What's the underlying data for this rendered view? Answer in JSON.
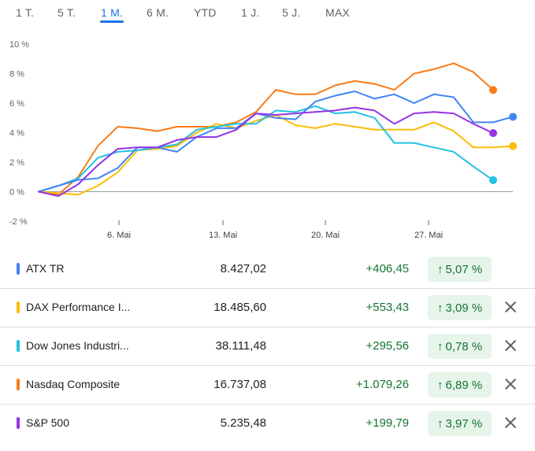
{
  "tabs": [
    "1 T.",
    "5 T.",
    "1 M.",
    "6 M.",
    "YTD",
    "1 J.",
    "5 J.",
    "MAX"
  ],
  "active_tab": "1 M.",
  "chart_data": {
    "type": "line",
    "y_unit": "%",
    "ylim": [
      -2,
      10
    ],
    "yticks": [
      "10 %",
      "8 %",
      "6 %",
      "4 %",
      "2 %",
      "0 %",
      "-2 %"
    ],
    "xticks": [
      "6. Mai",
      "13. Mai",
      "20. Mai",
      "27. Mai"
    ],
    "grid": false,
    "series": [
      {
        "name": "ATX TR",
        "color": "#4285f4",
        "values": [
          0,
          0.4,
          0.8,
          0.9,
          1.6,
          3.0,
          3.0,
          2.7,
          3.7,
          4.3,
          4.3,
          5.3,
          5.0,
          4.9,
          6.1,
          6.5,
          6.8,
          6.3,
          6.6,
          6.0,
          6.6,
          6.4,
          4.7,
          4.7,
          5.07
        ]
      },
      {
        "name": "DAX Performance I...",
        "color": "#fbbc04",
        "values": [
          0,
          -0.1,
          -0.2,
          0.4,
          1.3,
          2.8,
          2.9,
          3.1,
          4.0,
          4.6,
          4.3,
          4.8,
          5.2,
          4.5,
          4.3,
          4.6,
          4.4,
          4.2,
          4.2,
          4.2,
          4.7,
          4.1,
          3.0,
          3.0,
          3.09
        ]
      },
      {
        "name": "Dow Jones Industri...",
        "color": "#24c1e0",
        "values": [
          0,
          0.4,
          0.9,
          2.3,
          2.7,
          2.8,
          3.0,
          3.2,
          4.2,
          4.4,
          4.6,
          4.6,
          5.5,
          5.4,
          5.8,
          5.3,
          5.4,
          5.0,
          3.3,
          3.3,
          3.0,
          2.7,
          1.7,
          0.78
        ]
      },
      {
        "name": "Nasdaq Composite",
        "color": "#fa7b17",
        "values": [
          0,
          -0.2,
          1.0,
          3.1,
          4.4,
          4.3,
          4.1,
          4.4,
          4.4,
          4.4,
          4.7,
          5.4,
          6.9,
          6.6,
          6.6,
          7.2,
          7.5,
          7.3,
          6.9,
          8.0,
          8.3,
          8.7,
          8.1,
          6.89
        ]
      },
      {
        "name": "S&P 500",
        "color": "#9334e6",
        "values": [
          0,
          -0.3,
          0.5,
          1.8,
          2.9,
          3.0,
          3.0,
          3.5,
          3.7,
          3.7,
          4.2,
          5.3,
          5.2,
          5.3,
          5.4,
          5.5,
          5.7,
          5.5,
          4.6,
          5.3,
          5.4,
          5.3,
          4.6,
          3.97
        ]
      }
    ]
  },
  "rows": [
    {
      "name": "ATX TR",
      "price": "8.427,02",
      "change": "+406,45",
      "pct": "5,07 %",
      "color": "#4285f4",
      "removable": false
    },
    {
      "name": "DAX Performance I...",
      "price": "18.485,60",
      "change": "+553,43",
      "pct": "3,09 %",
      "color": "#fbbc04",
      "removable": true
    },
    {
      "name": "Dow Jones Industri...",
      "price": "38.111,48",
      "change": "+295,56",
      "pct": "0,78 %",
      "color": "#24c1e0",
      "removable": true
    },
    {
      "name": "Nasdaq Composite",
      "price": "16.737,08",
      "change": "+1.079,26",
      "pct": "6,89 %",
      "color": "#fa7b17",
      "removable": true
    },
    {
      "name": "S&P 500",
      "price": "5.235,48",
      "change": "+199,79",
      "pct": "3,97 %",
      "color": "#9334e6",
      "removable": true
    }
  ],
  "icons": {
    "up_arrow": "↑",
    "close": "close-icon"
  }
}
